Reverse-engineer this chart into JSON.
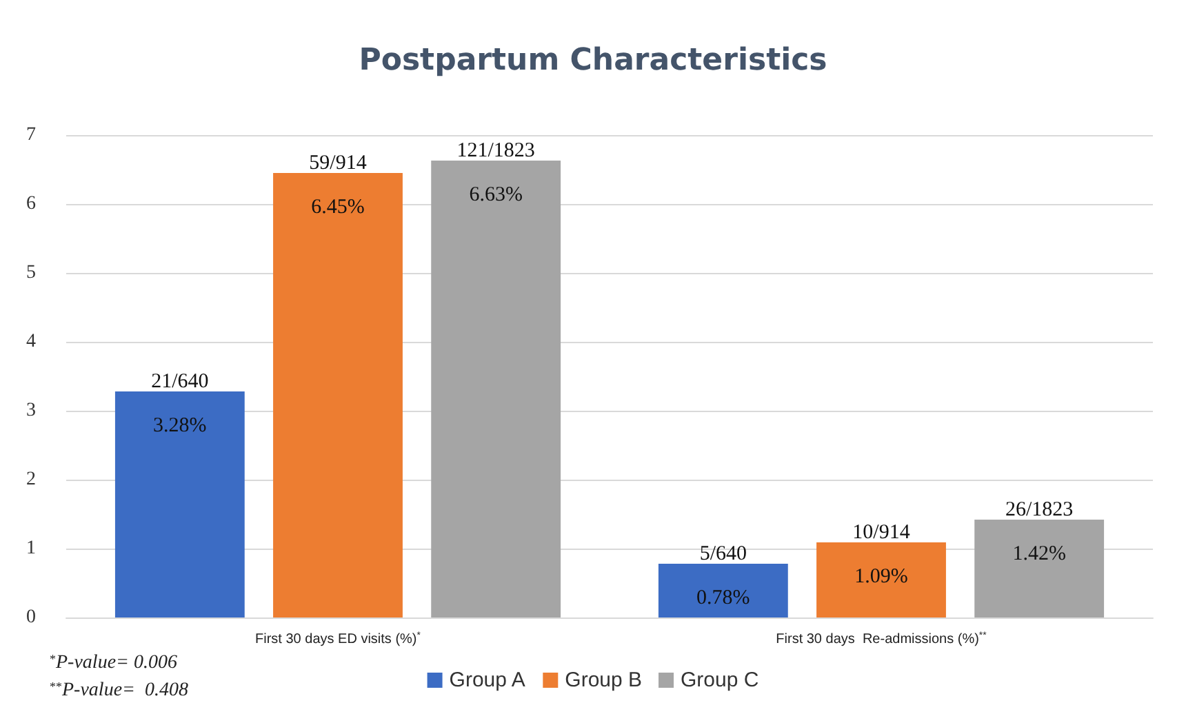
{
  "chart_data": {
    "type": "bar",
    "title": "Postpartum Characteristics",
    "categories": [
      "First 30 days ED visits (%)$^{*}$",
      "First 30 days  Re-admissions (%)$^{**}$"
    ],
    "series": [
      {
        "name": "Group A",
        "color": "#3c6cc4",
        "values": [
          3.28,
          0.78
        ],
        "value_labels": [
          "3.28%",
          "0.78%"
        ]
      },
      {
        "name": "Group B",
        "color": "#ed7d31",
        "values": [
          6.45,
          1.09
        ],
        "value_labels": [
          "6.45%",
          "1.09%"
        ]
      },
      {
        "name": "Group C",
        "color": "#a5a5a5",
        "values": [
          6.63,
          1.42
        ],
        "value_labels": [
          "6.63%",
          "1.42%"
        ]
      }
    ],
    "annotations": [
      "21/640",
      "59/914",
      "121/1823",
      "5/640",
      "10/914",
      "26/1823",
      "$^{*}$P-value= 0.006",
      "$^{**}$P-value=  0.408"
    ],
    "ylim": [
      0,
      7
    ],
    "yticks": [
      0,
      1,
      2,
      3,
      4,
      5,
      6,
      7
    ],
    "grid": "y",
    "legend": "bottom"
  }
}
